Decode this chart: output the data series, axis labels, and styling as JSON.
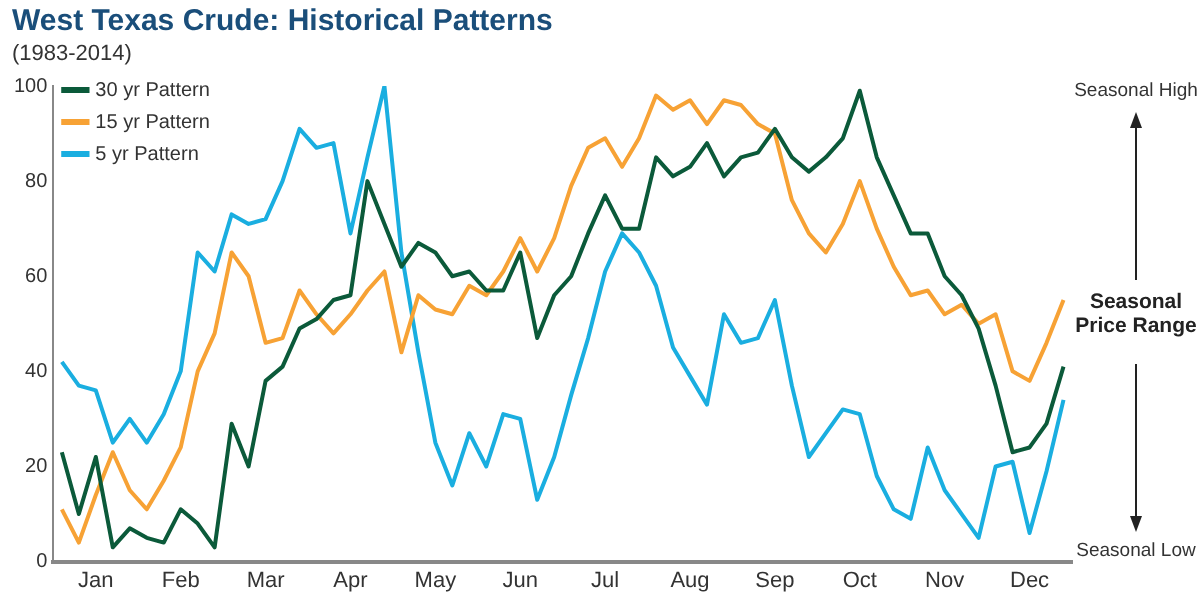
{
  "chart_data": {
    "type": "line",
    "title": "West Texas Crude: Historical Patterns",
    "subtitle": "(1983-2014)",
    "categories": [
      null,
      null,
      "Jan",
      null,
      null,
      null,
      null,
      "Feb",
      null,
      null,
      null,
      null,
      "Mar",
      null,
      null,
      null,
      null,
      "Apr",
      null,
      null,
      null,
      null,
      "May",
      null,
      null,
      null,
      null,
      "Jun",
      null,
      null,
      null,
      null,
      "Jul",
      null,
      null,
      null,
      null,
      "Aug",
      null,
      null,
      null,
      null,
      "Sep",
      null,
      null,
      null,
      null,
      "Oct",
      null,
      null,
      null,
      null,
      "Nov",
      null,
      null,
      null,
      null,
      "Dec",
      null,
      null
    ],
    "ylim": [
      0,
      100
    ],
    "yticks": [
      0,
      20,
      40,
      60,
      80,
      100
    ],
    "grid": false,
    "legend": "top left",
    "marker": "none",
    "line_style": "solid",
    "annotations": [
      "Seasonal High",
      "Seasonal Price Range",
      "Seasonal Low"
    ],
    "series": [
      {
        "name": "30 yr Pattern",
        "color": "#0b5a3a",
        "values": [
          23,
          10,
          22,
          3,
          7,
          5,
          4,
          11,
          8,
          3,
          29,
          20,
          38,
          41,
          49,
          51,
          55,
          56,
          80,
          71,
          62,
          67,
          65,
          60,
          61,
          57,
          57,
          65,
          47,
          56,
          60,
          69,
          77,
          70,
          70,
          85,
          81,
          83,
          88,
          81,
          85,
          86,
          91,
          85,
          82,
          85,
          89,
          99,
          85,
          77,
          69,
          69,
          60,
          56,
          49,
          37,
          23,
          24,
          29,
          41
        ]
      },
      {
        "name": "15 yr Pattern",
        "color": "#f7a235",
        "values": [
          11,
          4,
          14,
          23,
          15,
          11,
          17,
          24,
          40,
          48,
          65,
          60,
          46,
          47,
          57,
          52,
          48,
          52,
          57,
          61,
          44,
          56,
          53,
          52,
          58,
          56,
          61,
          68,
          61,
          68,
          79,
          87,
          89,
          83,
          89,
          98,
          95,
          97,
          92,
          97,
          96,
          92,
          90,
          76,
          69,
          65,
          71,
          80,
          70,
          62,
          56,
          57,
          52,
          54,
          50,
          52,
          40,
          38,
          46,
          55
        ]
      },
      {
        "name": "5 yr Pattern",
        "color": "#1aaee0",
        "values": [
          42,
          37,
          36,
          25,
          30,
          25,
          31,
          40,
          65,
          61,
          73,
          71,
          72,
          80,
          91,
          87,
          88,
          69,
          85,
          100,
          65,
          44,
          25,
          16,
          27,
          20,
          31,
          30,
          13,
          22,
          35,
          47,
          61,
          69,
          65,
          58,
          45,
          39,
          33,
          52,
          46,
          47,
          55,
          37,
          22,
          27,
          32,
          31,
          18,
          11,
          9,
          24,
          15,
          10,
          5,
          20,
          21,
          6,
          19,
          34
        ]
      }
    ]
  }
}
